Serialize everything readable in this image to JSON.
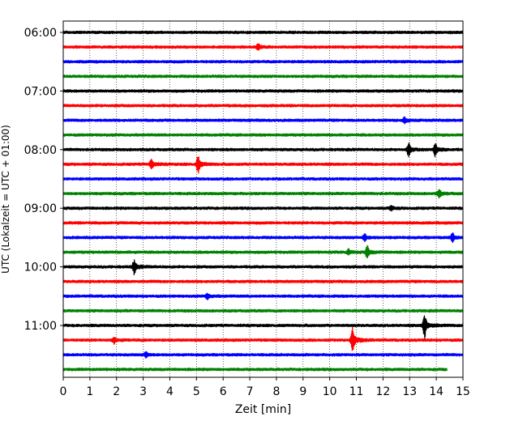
{
  "chart_data": {
    "type": "line",
    "xlabel": "Zeit  [min]",
    "ylabel": "UTC (Lokalzeit = UTC + 01:00)",
    "xlim": [
      0,
      15
    ],
    "x_ticks": [
      0,
      1,
      2,
      3,
      4,
      5,
      6,
      7,
      8,
      9,
      10,
      11,
      12,
      13,
      14,
      15
    ],
    "grid": "vertical dotted",
    "y_ticks": [
      {
        "label": "06:00",
        "trace": 0
      },
      {
        "label": "07:00",
        "trace": 4
      },
      {
        "label": "08:00",
        "trace": 8
      },
      {
        "label": "09:00",
        "trace": 12
      },
      {
        "label": "10:00",
        "trace": 16
      },
      {
        "label": "11:00",
        "trace": 20
      }
    ],
    "trace_interval_min": 15,
    "trace_colors": [
      "#000000",
      "#ff0000",
      "#0000ff",
      "#008000"
    ],
    "series": [
      {
        "start": "06:00",
        "color": "#000000",
        "end_x": 15,
        "events": []
      },
      {
        "start": "06:15",
        "color": "#ff0000",
        "end_x": 15,
        "events": [
          {
            "x": 7.3,
            "amp": 0.35
          }
        ]
      },
      {
        "start": "06:30",
        "color": "#0000ff",
        "end_x": 15,
        "events": []
      },
      {
        "start": "06:45",
        "color": "#008000",
        "end_x": 15,
        "events": []
      },
      {
        "start": "07:00",
        "color": "#000000",
        "end_x": 15,
        "events": []
      },
      {
        "start": "07:15",
        "color": "#ff0000",
        "end_x": 15,
        "events": []
      },
      {
        "start": "07:30",
        "color": "#0000ff",
        "end_x": 15,
        "events": [
          {
            "x": 12.8,
            "amp": 0.3
          }
        ]
      },
      {
        "start": "07:45",
        "color": "#008000",
        "end_x": 15,
        "events": []
      },
      {
        "start": "08:00",
        "color": "#000000",
        "end_x": 15,
        "events": [
          {
            "x": 12.95,
            "amp": 0.7
          },
          {
            "x": 13.95,
            "amp": 0.75
          }
        ]
      },
      {
        "start": "08:15",
        "color": "#ff0000",
        "end_x": 15,
        "events": [
          {
            "x": 3.3,
            "amp": 0.6
          },
          {
            "x": 5.05,
            "amp": 1.0
          }
        ]
      },
      {
        "start": "08:30",
        "color": "#0000ff",
        "end_x": 15,
        "events": []
      },
      {
        "start": "08:45",
        "color": "#008000",
        "end_x": 15,
        "events": [
          {
            "x": 14.1,
            "amp": 0.45
          }
        ]
      },
      {
        "start": "09:00",
        "color": "#000000",
        "end_x": 15,
        "events": [
          {
            "x": 12.3,
            "amp": 0.3
          }
        ]
      },
      {
        "start": "09:15",
        "color": "#ff0000",
        "end_x": 15,
        "events": []
      },
      {
        "start": "09:30",
        "color": "#0000ff",
        "end_x": 15,
        "events": [
          {
            "x": 11.3,
            "amp": 0.4
          },
          {
            "x": 14.6,
            "amp": 0.45
          }
        ]
      },
      {
        "start": "09:45",
        "color": "#008000",
        "end_x": 15,
        "events": [
          {
            "x": 10.7,
            "amp": 0.3
          },
          {
            "x": 11.4,
            "amp": 0.65
          }
        ]
      },
      {
        "start": "10:00",
        "color": "#000000",
        "end_x": 15,
        "events": [
          {
            "x": 2.65,
            "amp": 0.75
          }
        ]
      },
      {
        "start": "10:15",
        "color": "#ff0000",
        "end_x": 15,
        "events": []
      },
      {
        "start": "10:30",
        "color": "#0000ff",
        "end_x": 15,
        "events": [
          {
            "x": 5.4,
            "amp": 0.35
          }
        ]
      },
      {
        "start": "10:45",
        "color": "#008000",
        "end_x": 15,
        "events": []
      },
      {
        "start": "11:00",
        "color": "#000000",
        "end_x": 15,
        "events": [
          {
            "x": 13.55,
            "amp": 1.4
          }
        ]
      },
      {
        "start": "11:15",
        "color": "#ff0000",
        "end_x": 15,
        "events": [
          {
            "x": 1.9,
            "amp": 0.35
          },
          {
            "x": 10.85,
            "amp": 1.5
          }
        ]
      },
      {
        "start": "11:30",
        "color": "#0000ff",
        "end_x": 15,
        "events": [
          {
            "x": 3.1,
            "amp": 0.3
          }
        ]
      },
      {
        "start": "11:45",
        "color": "#008000",
        "end_x": 14.4,
        "events": []
      }
    ]
  }
}
